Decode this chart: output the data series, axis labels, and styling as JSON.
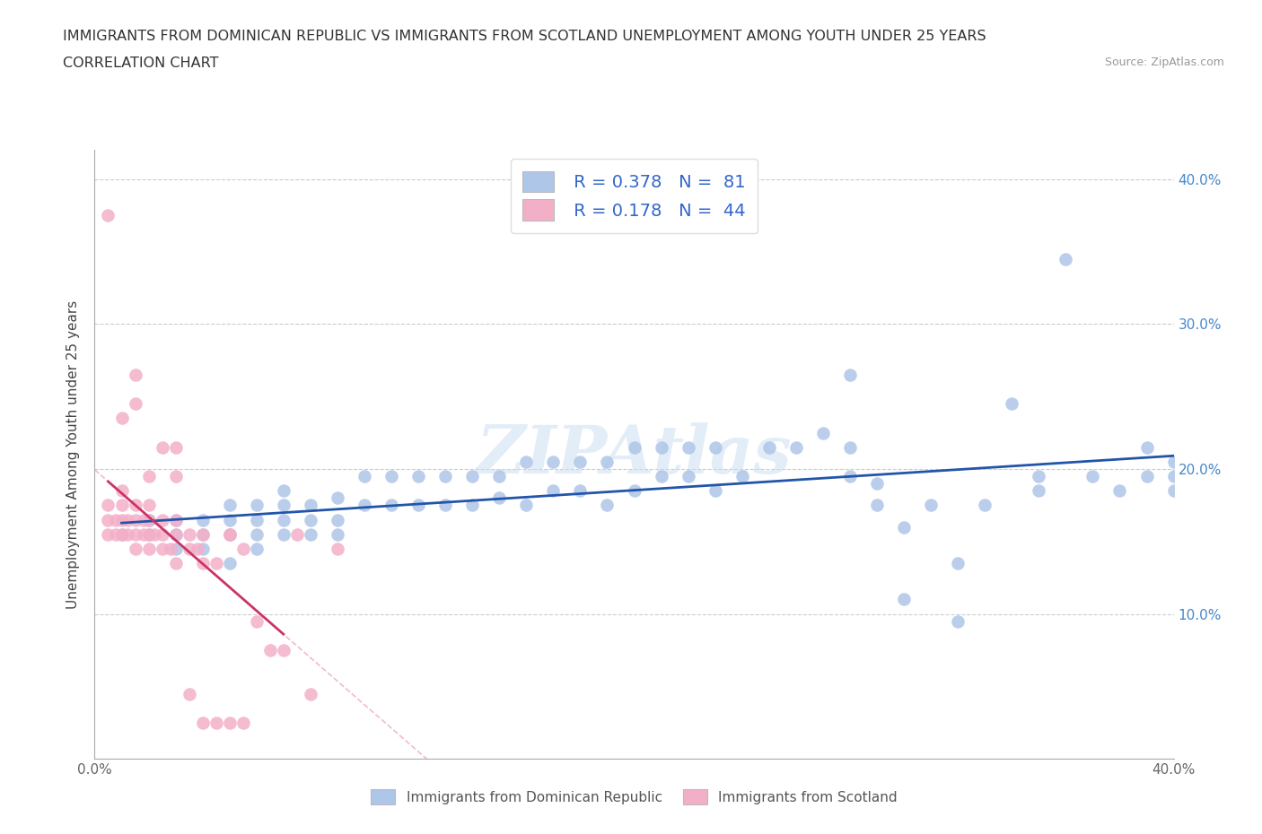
{
  "title_line1": "IMMIGRANTS FROM DOMINICAN REPUBLIC VS IMMIGRANTS FROM SCOTLAND UNEMPLOYMENT AMONG YOUTH UNDER 25 YEARS",
  "title_line2": "CORRELATION CHART",
  "source_text": "Source: ZipAtlas.com",
  "ylabel": "Unemployment Among Youth under 25 years",
  "xlim": [
    0.0,
    0.4
  ],
  "ylim": [
    0.0,
    0.42
  ],
  "x_tick_pos": [
    0.0,
    0.1,
    0.2,
    0.3,
    0.4
  ],
  "x_tick_labels": [
    "0.0%",
    "",
    "",
    "",
    "40.0%"
  ],
  "y_tick_pos": [
    0.0,
    0.1,
    0.2,
    0.3,
    0.4
  ],
  "y_tick_labels_right": [
    "",
    "10.0%",
    "20.0%",
    "30.0%",
    "40.0%"
  ],
  "watermark": "ZIPAtlas",
  "legend_R1": "R = 0.378",
  "legend_N1": "N =  81",
  "legend_R2": "R = 0.178",
  "legend_N2": "N =  44",
  "color_blue": "#aec6e8",
  "color_pink": "#f4afc8",
  "trendline_blue": "#2255aa",
  "trendline_pink": "#cc3366",
  "trendline_pink_dashed": "#e8a0b8",
  "legend_text_color": "#3366cc",
  "scatter_blue_x": [
    0.01,
    0.02,
    0.02,
    0.03,
    0.03,
    0.03,
    0.04,
    0.04,
    0.04,
    0.05,
    0.05,
    0.05,
    0.05,
    0.06,
    0.06,
    0.06,
    0.06,
    0.07,
    0.07,
    0.07,
    0.07,
    0.08,
    0.08,
    0.08,
    0.09,
    0.09,
    0.09,
    0.1,
    0.1,
    0.11,
    0.11,
    0.12,
    0.12,
    0.13,
    0.13,
    0.14,
    0.14,
    0.15,
    0.15,
    0.16,
    0.16,
    0.17,
    0.17,
    0.18,
    0.18,
    0.19,
    0.19,
    0.2,
    0.2,
    0.21,
    0.21,
    0.22,
    0.22,
    0.23,
    0.23,
    0.24,
    0.25,
    0.26,
    0.27,
    0.28,
    0.28,
    0.3,
    0.31,
    0.32,
    0.33,
    0.34,
    0.35,
    0.36,
    0.37,
    0.38,
    0.39,
    0.39,
    0.4,
    0.4,
    0.4,
    0.28,
    0.29,
    0.29,
    0.3,
    0.32,
    0.35
  ],
  "scatter_blue_y": [
    0.155,
    0.155,
    0.165,
    0.145,
    0.155,
    0.165,
    0.145,
    0.155,
    0.165,
    0.135,
    0.155,
    0.165,
    0.175,
    0.145,
    0.155,
    0.165,
    0.175,
    0.155,
    0.165,
    0.175,
    0.185,
    0.155,
    0.165,
    0.175,
    0.155,
    0.165,
    0.18,
    0.175,
    0.195,
    0.175,
    0.195,
    0.175,
    0.195,
    0.175,
    0.195,
    0.175,
    0.195,
    0.18,
    0.195,
    0.175,
    0.205,
    0.185,
    0.205,
    0.185,
    0.205,
    0.175,
    0.205,
    0.185,
    0.215,
    0.195,
    0.215,
    0.195,
    0.215,
    0.185,
    0.215,
    0.195,
    0.215,
    0.215,
    0.225,
    0.195,
    0.215,
    0.16,
    0.175,
    0.135,
    0.175,
    0.245,
    0.195,
    0.345,
    0.195,
    0.185,
    0.195,
    0.215,
    0.195,
    0.185,
    0.205,
    0.265,
    0.175,
    0.19,
    0.11,
    0.095,
    0.185
  ],
  "scatter_pink_x": [
    0.005,
    0.005,
    0.005,
    0.008,
    0.008,
    0.01,
    0.01,
    0.01,
    0.01,
    0.012,
    0.012,
    0.015,
    0.015,
    0.015,
    0.015,
    0.018,
    0.018,
    0.02,
    0.02,
    0.02,
    0.02,
    0.022,
    0.025,
    0.025,
    0.025,
    0.028,
    0.03,
    0.03,
    0.03,
    0.035,
    0.035,
    0.038,
    0.04,
    0.04,
    0.045,
    0.05,
    0.05,
    0.055,
    0.06,
    0.065,
    0.07,
    0.075,
    0.08,
    0.09
  ],
  "scatter_pink_y": [
    0.155,
    0.165,
    0.175,
    0.155,
    0.165,
    0.155,
    0.165,
    0.175,
    0.185,
    0.155,
    0.165,
    0.145,
    0.155,
    0.165,
    0.175,
    0.155,
    0.165,
    0.145,
    0.155,
    0.165,
    0.175,
    0.155,
    0.145,
    0.155,
    0.165,
    0.145,
    0.135,
    0.155,
    0.165,
    0.145,
    0.155,
    0.145,
    0.135,
    0.155,
    0.135,
    0.155,
    0.155,
    0.145,
    0.095,
    0.075,
    0.075,
    0.155,
    0.045,
    0.145
  ],
  "pink_outliers_x": [
    0.005,
    0.01,
    0.015,
    0.015,
    0.02,
    0.025,
    0.03,
    0.03,
    0.035,
    0.04,
    0.045,
    0.05,
    0.055
  ],
  "pink_outliers_y": [
    0.375,
    0.235,
    0.245,
    0.265,
    0.195,
    0.215,
    0.215,
    0.195,
    0.045,
    0.025,
    0.025,
    0.025,
    0.025
  ]
}
